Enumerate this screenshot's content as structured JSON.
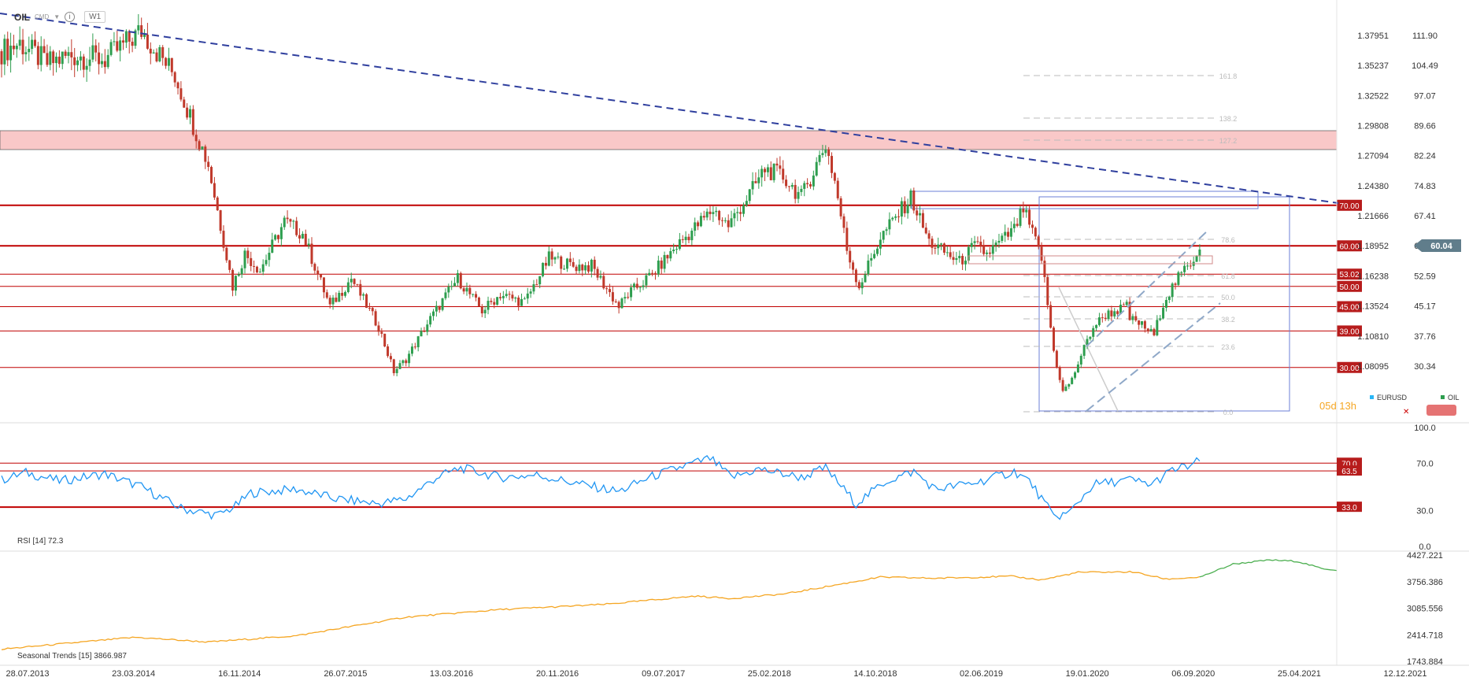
{
  "header": {
    "symbol": "OIL",
    "source": "CMD",
    "info_icon": "info-icon",
    "timeframe": "W1"
  },
  "colors": {
    "up": "#2e9e4f",
    "down": "#c0392b",
    "level_line": "#c00000",
    "trendline": "#2f3f9e",
    "zone_fill": "#f9c8c8",
    "rsi": "#2196f3",
    "seasonal_hist": "#f5a623",
    "seasonal_fwd": "#4caf50",
    "fib_box": "#6b7fd7",
    "countdown": "#f5a623"
  },
  "axes": {
    "eurusd_ticks": [
      "1.37951",
      "1.35237",
      "1.32522",
      "1.29808",
      "1.27094",
      "1.24380",
      "1.21666",
      "1.18952",
      "1.16238",
      "1.13524",
      "1.10810",
      "1.08095"
    ],
    "oil_ticks": [
      "111.90",
      "104.49",
      "97.07",
      "89.66",
      "82.24",
      "74.83",
      "67.41",
      "60.04",
      "52.59",
      "45.17",
      "37.76",
      "30.34"
    ],
    "dates": [
      "28.07.2013",
      "23.03.2014",
      "16.11.2014",
      "26.07.2015",
      "13.03.2016",
      "20.11.2016",
      "09.07.2017",
      "25.02.2018",
      "14.10.2018",
      "02.06.2019",
      "19.01.2020",
      "06.09.2020",
      "25.04.2021",
      "12.12.2021"
    ]
  },
  "levels": [
    {
      "label": "70.00",
      "value": 70.0
    },
    {
      "label": "60.00",
      "value": 60.0
    },
    {
      "label": "53.02",
      "value": 53.02
    },
    {
      "label": "50.00",
      "value": 50.0
    },
    {
      "label": "45.00",
      "value": 45.0
    },
    {
      "label": "39.00",
      "value": 39.0
    },
    {
      "label": "30.00",
      "value": 30.0
    }
  ],
  "last_price_label": "60.04",
  "fib_labels": [
    "161.8",
    "138.2",
    "127.2",
    "78.6",
    "61.8",
    "50.0",
    "38.2",
    "23.6",
    "0.0"
  ],
  "legend": {
    "eurusd": "EURUSD",
    "oil": "OIL",
    "countdown": "05d 13h"
  },
  "rsi": {
    "title": "RSI [14] 72.3",
    "axis_ticks": [
      "100.0",
      "70.0",
      "30.0",
      "0.0"
    ],
    "level_labels": [
      {
        "label": "70.0",
        "value": 70.0
      },
      {
        "label": "63.5",
        "value": 63.5
      },
      {
        "label": "33.0",
        "value": 33.0
      }
    ]
  },
  "seasonal": {
    "title": "Seasonal Trends [15] 3866.987",
    "axis_ticks": [
      "4427.221",
      "3756.386",
      "3085.556",
      "2414.718",
      "1743.884"
    ]
  },
  "chart_data": [
    {
      "type": "candlestick",
      "title": "OIL",
      "xlabel": "",
      "ylabel": "",
      "ylim": [
        24,
        118
      ],
      "x_ticks": [
        "28.07.2013",
        "23.03.2014",
        "16.11.2014",
        "26.07.2015",
        "13.03.2016",
        "20.11.2016",
        "09.07.2017",
        "25.02.2018",
        "14.10.2018",
        "02.06.2019",
        "19.01.2020",
        "06.09.2020",
        "25.04.2021",
        "12.12.2021"
      ],
      "y_ticks_right": [
        "111.90",
        "104.49",
        "97.07",
        "89.66",
        "82.24",
        "74.83",
        "67.41",
        "60.04",
        "52.59",
        "45.17",
        "37.76",
        "30.34"
      ],
      "y_ticks_left": [
        "1.37951",
        "1.35237",
        "1.32522",
        "1.29808",
        "1.27094",
        "1.24380",
        "1.21666",
        "1.18952",
        "1.16238",
        "1.13524",
        "1.10810",
        "1.08095"
      ],
      "series": [
        {
          "name": "OIL",
          "anchors": [
            {
              "date": "2013-07-28",
              "value": 108
            },
            {
              "date": "2013-09-08",
              "value": 110
            },
            {
              "date": "2013-11-10",
              "value": 105
            },
            {
              "date": "2014-01-05",
              "value": 107
            },
            {
              "date": "2014-03-23",
              "value": 106
            },
            {
              "date": "2014-06-15",
              "value": 113
            },
            {
              "date": "2014-08-31",
              "value": 102
            },
            {
              "date": "2014-11-16",
              "value": 80
            },
            {
              "date": "2015-01-11",
              "value": 50
            },
            {
              "date": "2015-02-08",
              "value": 58
            },
            {
              "date": "2015-03-15",
              "value": 54
            },
            {
              "date": "2015-05-10",
              "value": 66
            },
            {
              "date": "2015-06-21",
              "value": 63
            },
            {
              "date": "2015-08-23",
              "value": 45
            },
            {
              "date": "2015-10-11",
              "value": 52
            },
            {
              "date": "2015-12-13",
              "value": 40
            },
            {
              "date": "2016-01-17",
              "value": 29
            },
            {
              "date": "2016-02-14",
              "value": 32
            },
            {
              "date": "2016-04-10",
              "value": 42
            },
            {
              "date": "2016-06-12",
              "value": 52
            },
            {
              "date": "2016-08-07",
              "value": 44
            },
            {
              "date": "2016-09-18",
              "value": 48
            },
            {
              "date": "2016-11-13",
              "value": 46
            },
            {
              "date": "2017-01-08",
              "value": 57
            },
            {
              "date": "2017-03-05",
              "value": 55
            },
            {
              "date": "2017-04-16",
              "value": 55
            },
            {
              "date": "2017-06-18",
              "value": 45
            },
            {
              "date": "2017-07-09",
              "value": 48
            },
            {
              "date": "2017-09-03",
              "value": 53
            },
            {
              "date": "2017-10-29",
              "value": 60
            },
            {
              "date": "2017-12-24",
              "value": 66
            },
            {
              "date": "2018-01-21",
              "value": 69
            },
            {
              "date": "2018-02-25",
              "value": 65
            },
            {
              "date": "2018-04-22",
              "value": 74
            },
            {
              "date": "2018-05-20",
              "value": 79
            },
            {
              "date": "2018-07-01",
              "value": 77
            },
            {
              "date": "2018-08-12",
              "value": 72
            },
            {
              "date": "2018-10-07",
              "value": 85
            },
            {
              "date": "2018-10-28",
              "value": 76
            },
            {
              "date": "2018-11-25",
              "value": 59
            },
            {
              "date": "2018-12-23",
              "value": 50
            },
            {
              "date": "2019-02-10",
              "value": 62
            },
            {
              "date": "2019-04-21",
              "value": 72
            },
            {
              "date": "2019-06-02",
              "value": 61
            },
            {
              "date": "2019-06-16",
              "value": 60
            },
            {
              "date": "2019-08-11",
              "value": 56
            },
            {
              "date": "2019-09-15",
              "value": 60
            },
            {
              "date": "2019-10-13",
              "value": 58
            },
            {
              "date": "2019-12-15",
              "value": 64
            },
            {
              "date": "2020-01-05",
              "value": 69
            },
            {
              "date": "2020-01-19",
              "value": 65
            },
            {
              "date": "2020-02-16",
              "value": 57
            },
            {
              "date": "2020-03-15",
              "value": 34
            },
            {
              "date": "2020-04-05",
              "value": 24
            },
            {
              "date": "2020-04-26",
              "value": 27
            },
            {
              "date": "2020-05-17",
              "value": 33
            },
            {
              "date": "2020-06-14",
              "value": 40
            },
            {
              "date": "2020-07-12",
              "value": 43
            },
            {
              "date": "2020-08-30",
              "value": 45
            },
            {
              "date": "2020-09-06",
              "value": 42
            },
            {
              "date": "2020-09-27",
              "value": 41
            },
            {
              "date": "2020-11-01",
              "value": 38
            },
            {
              "date": "2020-11-22",
              "value": 46
            },
            {
              "date": "2020-12-20",
              "value": 51
            },
            {
              "date": "2021-01-17",
              "value": 55
            },
            {
              "date": "2021-01-31",
              "value": 57
            },
            {
              "date": "2021-02-14",
              "value": 60
            }
          ]
        }
      ],
      "annotations": [
        "0.0",
        "23.6",
        "38.2",
        "50.0",
        "61.8",
        "78.6",
        "127.2",
        "138.2",
        "161.8"
      ]
    },
    {
      "type": "line",
      "title": "RSI [14] 72.3",
      "xlabel": "",
      "ylabel": "",
      "ylim": [
        0,
        100
      ],
      "y_ticks": [
        "100.0",
        "70.0",
        "30.0",
        "0.0"
      ],
      "series": [
        {
          "name": "RSI",
          "anchors": [
            {
              "date": "2013-07-28",
              "value": 56
            },
            {
              "date": "2013-09-22",
              "value": 62
            },
            {
              "date": "2013-12-08",
              "value": 55
            },
            {
              "date": "2014-03-23",
              "value": 61
            },
            {
              "date": "2014-06-15",
              "value": 50
            },
            {
              "date": "2014-09-14",
              "value": 32
            },
            {
              "date": "2014-12-07",
              "value": 26
            },
            {
              "date": "2015-01-18",
              "value": 34
            },
            {
              "date": "2015-02-22",
              "value": 45
            },
            {
              "date": "2015-06-07",
              "value": 48
            },
            {
              "date": "2015-09-06",
              "value": 40
            },
            {
              "date": "2015-12-13",
              "value": 36
            },
            {
              "date": "2016-02-14",
              "value": 40
            },
            {
              "date": "2016-04-24",
              "value": 58
            },
            {
              "date": "2016-06-19",
              "value": 66
            },
            {
              "date": "2016-09-18",
              "value": 58
            },
            {
              "date": "2016-12-11",
              "value": 60
            },
            {
              "date": "2017-03-26",
              "value": 52
            },
            {
              "date": "2017-06-18",
              "value": 46
            },
            {
              "date": "2017-08-27",
              "value": 58
            },
            {
              "date": "2017-11-19",
              "value": 68
            },
            {
              "date": "2018-01-14",
              "value": 74
            },
            {
              "date": "2018-03-04",
              "value": 58
            },
            {
              "date": "2018-05-06",
              "value": 65
            },
            {
              "date": "2018-08-12",
              "value": 58
            },
            {
              "date": "2018-10-07",
              "value": 66
            },
            {
              "date": "2018-12-16",
              "value": 36
            },
            {
              "date": "2019-02-24",
              "value": 55
            },
            {
              "date": "2019-04-28",
              "value": 63
            },
            {
              "date": "2019-06-16",
              "value": 48
            },
            {
              "date": "2019-09-22",
              "value": 54
            },
            {
              "date": "2019-12-15",
              "value": 63
            },
            {
              "date": "2020-01-19",
              "value": 55
            },
            {
              "date": "2020-03-15",
              "value": 25
            },
            {
              "date": "2020-04-19",
              "value": 28
            },
            {
              "date": "2020-06-14",
              "value": 52
            },
            {
              "date": "2020-09-06",
              "value": 56
            },
            {
              "date": "2020-10-25",
              "value": 52
            },
            {
              "date": "2020-12-13",
              "value": 64
            },
            {
              "date": "2021-01-24",
              "value": 68
            },
            {
              "date": "2021-02-14",
              "value": 72.3
            }
          ]
        }
      ],
      "levels": [
        70.0,
        63.5,
        33.0
      ]
    },
    {
      "type": "line",
      "title": "Seasonal Trends [15] 3866.987",
      "xlabel": "",
      "ylabel": "",
      "ylim": [
        1743.884,
        4427.221
      ],
      "y_ticks": [
        "4427.221",
        "3756.386",
        "3085.556",
        "2414.718",
        "1743.884"
      ],
      "series": [
        {
          "name": "Seasonal Trends",
          "anchors": [
            {
              "date": "2013-07-28",
              "value": 2050
            },
            {
              "date": "2014-06-01",
              "value": 2350
            },
            {
              "date": "2014-11-16",
              "value": 2230
            },
            {
              "date": "2015-06-07",
              "value": 2390
            },
            {
              "date": "2016-02-14",
              "value": 2860
            },
            {
              "date": "2016-09-18",
              "value": 3050
            },
            {
              "date": "2017-05-14",
              "value": 3180
            },
            {
              "date": "2017-12-10",
              "value": 3390
            },
            {
              "date": "2018-03-04",
              "value": 3330
            },
            {
              "date": "2018-07-08",
              "value": 3450
            },
            {
              "date": "2019-02-10",
              "value": 3870
            },
            {
              "date": "2019-06-16",
              "value": 3840
            },
            {
              "date": "2019-12-08",
              "value": 3890
            },
            {
              "date": "2020-02-16",
              "value": 3800
            },
            {
              "date": "2020-05-10",
              "value": 3990
            },
            {
              "date": "2020-09-13",
              "value": 4000
            },
            {
              "date": "2020-11-29",
              "value": 3820
            },
            {
              "date": "2021-02-14",
              "value": 3866.987
            }
          ]
        },
        {
          "name": "Seasonal Trends (forward)",
          "anchors": [
            {
              "date": "2021-02-14",
              "value": 3866.987
            },
            {
              "date": "2021-05-02",
              "value": 4200
            },
            {
              "date": "2021-07-25",
              "value": 4300
            },
            {
              "date": "2021-09-26",
              "value": 4270
            },
            {
              "date": "2021-11-21",
              "value": 4090
            },
            {
              "date": "2021-12-26",
              "value": 4050
            }
          ]
        }
      ]
    }
  ]
}
